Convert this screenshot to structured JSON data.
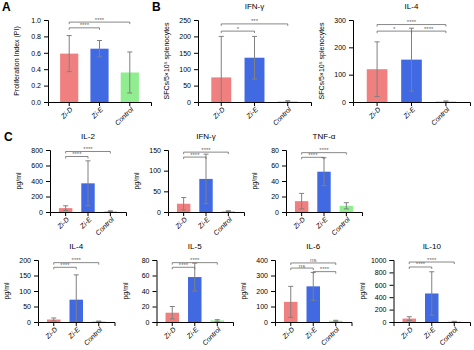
{
  "chart_data": [
    {
      "type": "bar",
      "panel_label": "A",
      "ylabel": "Proliferation Index (PI)",
      "categories": [
        "Zi-D",
        "Zi-E",
        "Control"
      ],
      "values": [
        0.59,
        0.65,
        0.36
      ],
      "errors": [
        0.22,
        0.1,
        0.25
      ],
      "colors": [
        "#F08080",
        "#4169E1",
        "#90EE90"
      ],
      "ylim": [
        0,
        1.0
      ],
      "yticks": [
        {
          "value": 0.0,
          "label": "0.0"
        },
        0.2,
        0.4,
        0.6,
        0.8,
        {
          "value": 1.0,
          "label": "1.0"
        }
      ],
      "annotations": [
        {
          "from": "Zi-D",
          "to": "Zi-E",
          "y": 0.88,
          "text": "****"
        },
        {
          "from": "Zi-D",
          "to": "Control",
          "y": 0.95,
          "text": "****"
        }
      ]
    },
    {
      "type": "bar",
      "panel_label": "B",
      "title": "IFN-γ",
      "ylabel": "SFCs/5×10⁵ splenocytes",
      "categories": [
        "Zi-D",
        "Zi-E",
        "Control"
      ],
      "values": [
        75,
        135,
        2
      ],
      "errors": [
        125,
        65,
        2
      ],
      "colors": [
        "#F08080",
        "#4169E1",
        "#90EE90"
      ],
      "ylim": [
        0,
        250
      ],
      "yticks": [
        0,
        50,
        100,
        150,
        200,
        250
      ],
      "annotations": [
        {
          "from": "Zi-D",
          "to": "Zi-E",
          "y": 210,
          "text": "*"
        },
        {
          "from": "Zi-D",
          "to": "Control",
          "y": 232,
          "text": "***"
        }
      ]
    },
    {
      "type": "bar",
      "title": "IL-4",
      "ylabel": "SFCs/5×10⁵ splenocytes",
      "categories": [
        "Zi-D",
        "Zi-E",
        "Control"
      ],
      "values": [
        120,
        155,
        2
      ],
      "errors": [
        100,
        115,
        2
      ],
      "colors": [
        "#F08080",
        "#4169E1",
        "#90EE90"
      ],
      "ylim": [
        0,
        300
      ],
      "yticks": [
        0,
        100,
        200,
        300
      ],
      "annotations": [
        {
          "from": "Zi-D",
          "to": "Zi-E",
          "y": 252,
          "text": "*"
        },
        {
          "from": "Zi-D",
          "to": "Control",
          "y": 276,
          "text": "****"
        },
        {
          "from": "Zi-E",
          "to": "Control",
          "y": 252,
          "text": "****"
        }
      ]
    },
    {
      "type": "bar",
      "panel_label": "C",
      "title": "IL-2",
      "ylabel": "pg/ml",
      "categories": [
        "Zi-D",
        "Zi-E",
        "Control"
      ],
      "values": [
        50,
        370,
        10
      ],
      "errors": [
        30,
        290,
        5
      ],
      "colors": [
        "#F08080",
        "#4169E1",
        "#90EE90"
      ],
      "ylim": [
        0,
        800
      ],
      "yticks": [
        0,
        200,
        400,
        600,
        800
      ],
      "annotations": [
        {
          "from": "Zi-D",
          "to": "Zi-E",
          "y": 690,
          "text": "****"
        },
        {
          "from": "Zi-D",
          "to": "Control",
          "y": 755,
          "text": "****"
        }
      ]
    },
    {
      "type": "bar",
      "title": "IFN-γ",
      "ylabel": "pg/ml",
      "categories": [
        "Zi-D",
        "Zi-E",
        "Control"
      ],
      "values": [
        20,
        80,
        2
      ],
      "errors": [
        15,
        60,
        1
      ],
      "colors": [
        "#F08080",
        "#4169E1",
        "#90EE90"
      ],
      "ylim": [
        0,
        150
      ],
      "yticks": [
        0,
        50,
        100,
        150
      ],
      "annotations": [
        {
          "from": "Zi-D",
          "to": "Zi-E",
          "y": 128,
          "text": "****"
        },
        {
          "from": "Zi-D",
          "to": "Control",
          "y": 140,
          "text": "****"
        }
      ]
    },
    {
      "type": "bar",
      "title": "TNF-α",
      "ylabel": "pg/ml",
      "categories": [
        "Zi-D",
        "Zi-E",
        "Control"
      ],
      "values": [
        14,
        52,
        8
      ],
      "errors": [
        10,
        18,
        4
      ],
      "colors": [
        "#F08080",
        "#4169E1",
        "#90EE90"
      ],
      "ylim": [
        0,
        80
      ],
      "yticks": [
        0,
        20,
        40,
        60,
        80
      ],
      "annotations": [
        {
          "from": "Zi-D",
          "to": "Zi-E",
          "y": 68,
          "text": "****"
        },
        {
          "from": "Zi-D",
          "to": "Control",
          "y": 74,
          "text": "****"
        }
      ]
    },
    {
      "type": "bar",
      "title": "IL-4",
      "ylabel": "pg/ml",
      "categories": [
        "Zi-D",
        "Zi-E",
        "Control"
      ],
      "values": [
        8,
        72,
        2
      ],
      "errors": [
        5,
        80,
        1
      ],
      "colors": [
        "#F08080",
        "#4169E1",
        "#90EE90"
      ],
      "ylim": [
        0,
        200
      ],
      "yticks": [
        0,
        50,
        100,
        150,
        200
      ],
      "annotations": [
        {
          "from": "Zi-D",
          "to": "Zi-E",
          "y": 170,
          "text": "****"
        },
        {
          "from": "Zi-D",
          "to": "Control",
          "y": 185,
          "text": "****"
        }
      ]
    },
    {
      "type": "bar",
      "title": "IL-5",
      "ylabel": "pg/ml",
      "categories": [
        "Zi-D",
        "Zi-E",
        "Control"
      ],
      "values": [
        12,
        58,
        2
      ],
      "errors": [
        8,
        18,
        1
      ],
      "colors": [
        "#F08080",
        "#4169E1",
        "#90EE90"
      ],
      "ylim": [
        0,
        80
      ],
      "yticks": [
        0,
        20,
        40,
        60,
        80
      ],
      "annotations": [
        {
          "from": "Zi-D",
          "to": "Zi-E",
          "y": 68,
          "text": "****"
        },
        {
          "from": "Zi-D",
          "to": "Control",
          "y": 74,
          "text": "****"
        }
      ]
    },
    {
      "type": "bar",
      "title": "IL-6",
      "ylabel": "pg/ml",
      "categories": [
        "Zi-D",
        "Zi-E",
        "Control"
      ],
      "values": [
        130,
        230,
        8
      ],
      "errors": [
        100,
        90,
        3
      ],
      "colors": [
        "#F08080",
        "#4169E1",
        "#90EE90"
      ],
      "ylim": [
        0,
        400
      ],
      "yticks": [
        0,
        100,
        200,
        300,
        400
      ],
      "annotations": [
        {
          "from": "Zi-D",
          "to": "Zi-E",
          "y": 335,
          "text": "ns"
        },
        {
          "from": "Zi-D",
          "to": "Control",
          "y": 368,
          "text": "ns"
        },
        {
          "from": "Zi-E",
          "to": "Control",
          "y": 312,
          "text": "****"
        }
      ]
    },
    {
      "type": "bar",
      "title": "IL-10",
      "ylabel": "pg/ml",
      "categories": [
        "Zi-D",
        "Zi-E",
        "Control"
      ],
      "values": [
        55,
        460,
        8
      ],
      "errors": [
        30,
        350,
        3
      ],
      "colors": [
        "#F08080",
        "#4169E1",
        "#90EE90"
      ],
      "ylim": [
        0,
        1000
      ],
      "yticks": [
        0,
        200,
        400,
        600,
        800,
        1000
      ],
      "annotations": [
        {
          "from": "Zi-D",
          "to": "Zi-E",
          "y": 855,
          "text": "****"
        },
        {
          "from": "Zi-D",
          "to": "Control",
          "y": 935,
          "text": "****"
        }
      ]
    }
  ]
}
